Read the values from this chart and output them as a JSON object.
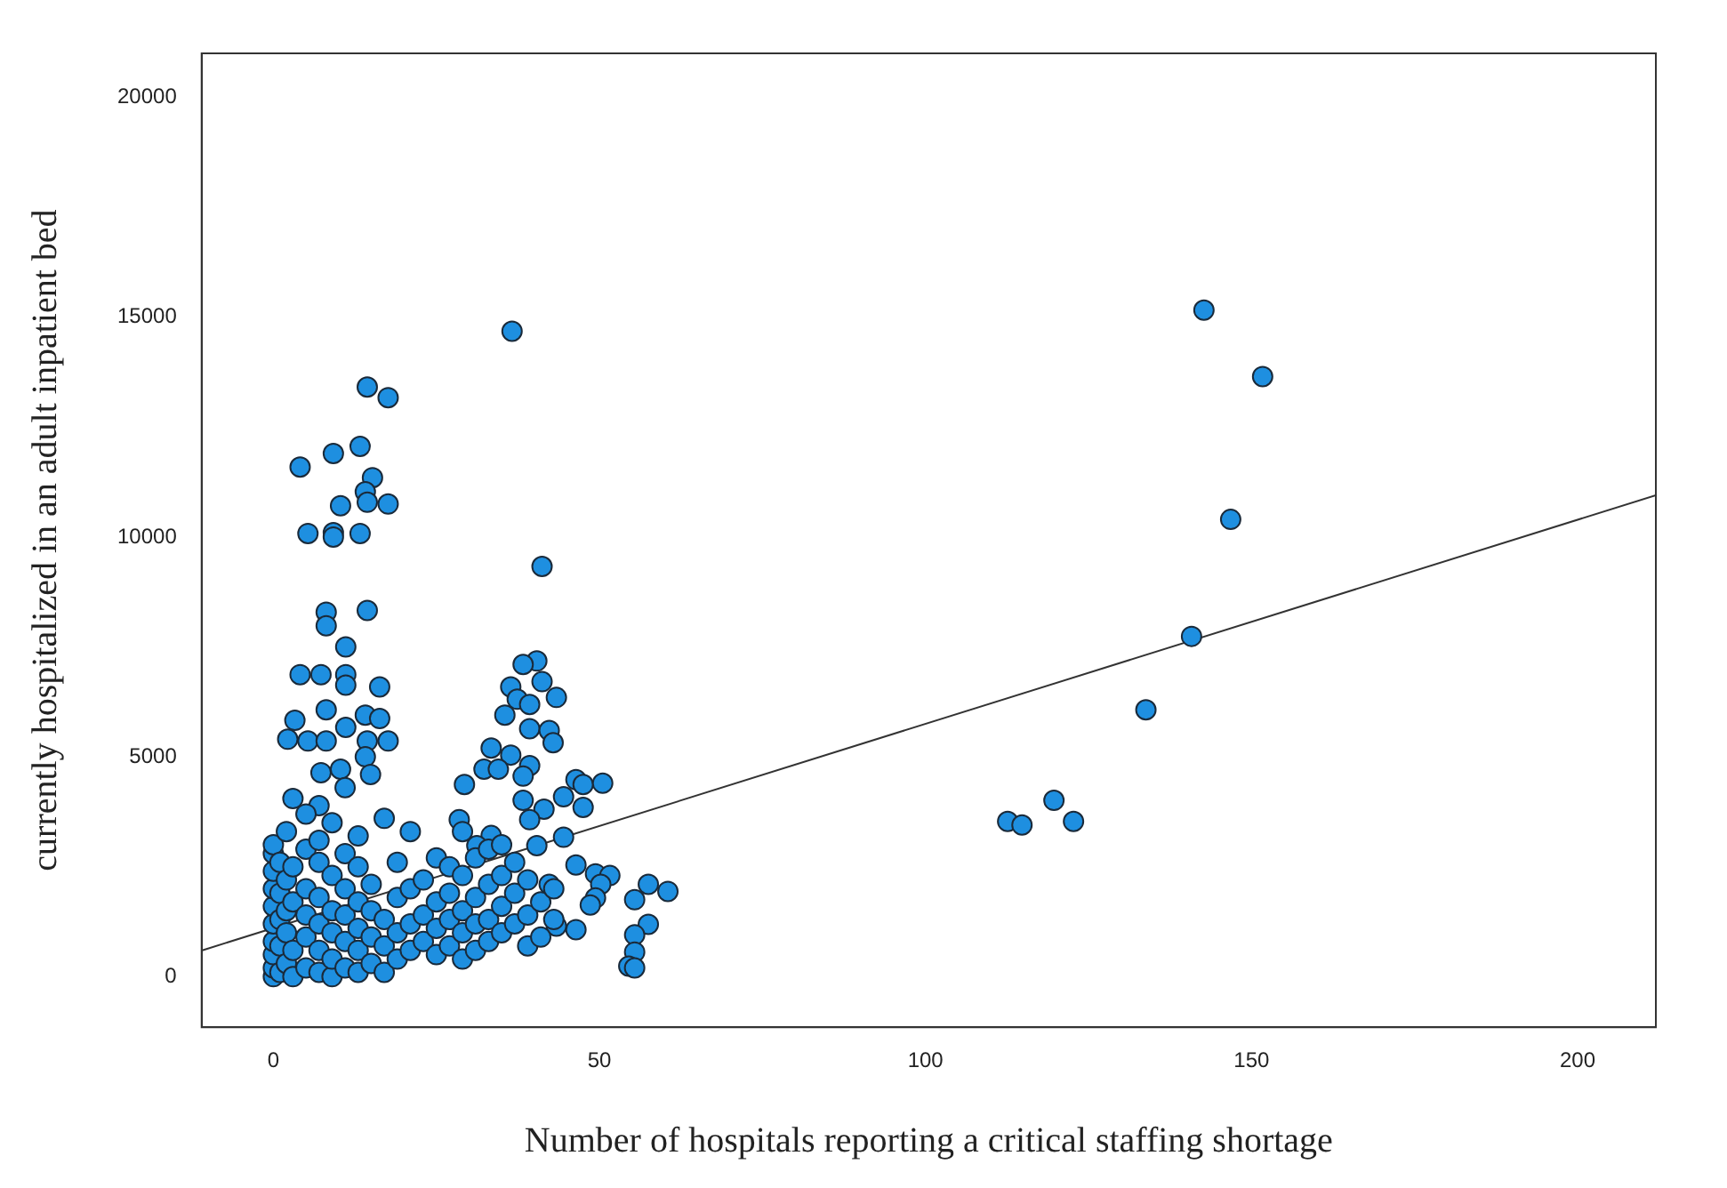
{
  "chart_data": {
    "type": "scatter",
    "xlabel": "Number of hospitals reporting a critical staffing shortage",
    "ylabel": "currently hospitalized in an adult inpatient bed",
    "xlim": [
      -11,
      212
    ],
    "ylim": [
      -1150,
      21000
    ],
    "xticks": [
      0,
      50,
      100,
      150,
      200
    ],
    "yticks": [
      0,
      5000,
      10000,
      15000,
      20000
    ],
    "grid": false,
    "legend": false,
    "marker": "circle",
    "series": [
      {
        "type": "scatter",
        "color": "#1e8fe0",
        "x": [
          112.6,
          114.8,
          119.7,
          122.7,
          133.8,
          140.8,
          142.7,
          146.8,
          151.7,
          36.6,
          14.4,
          17.6,
          4.1,
          9.2,
          13.3,
          15.2,
          14.1,
          14.4,
          17.6,
          10.3,
          5.3,
          9.2,
          9.2,
          13.3,
          41.2,
          14.4,
          8.1,
          8.1,
          11.1,
          4.1,
          7.3,
          11.1,
          11.1,
          16.3,
          3.3,
          8.1,
          11.1,
          14.1,
          16.3,
          2.2,
          5.3,
          8.1,
          14.4,
          17.6,
          14.1,
          7.3,
          10.3,
          14.9,
          3,
          7,
          40.4,
          38.3,
          41.2,
          36.4,
          37.4,
          39.3,
          43.4,
          35.5,
          39.3,
          42.3,
          42.9,
          33.4,
          36.4,
          32.3,
          34.5,
          39.3,
          29.3,
          38.3,
          46.4,
          47.5,
          50.5,
          38.3,
          44.5,
          47.5,
          41.5,
          28.5,
          39.3,
          33.4,
          44.5,
          31.2,
          40.4,
          46.4,
          49.4,
          51.6,
          50.2,
          57.5,
          60.5,
          55.4,
          49.4,
          48.6,
          57.5,
          46.4,
          55.4,
          55.4,
          54.5,
          55.4,
          43.4,
          42.3,
          0,
          0,
          0,
          0,
          0,
          0,
          0,
          0,
          0,
          0,
          1,
          1,
          1,
          1,
          1,
          2,
          2,
          2,
          2,
          2,
          3,
          3,
          3,
          3,
          5,
          5,
          5,
          5,
          5,
          5,
          7,
          7,
          7,
          7,
          7,
          7,
          9,
          9,
          9,
          9,
          9,
          9,
          11,
          11,
          11,
          11,
          11,
          11,
          13,
          13,
          13,
          13,
          13,
          13,
          15,
          15,
          15,
          15,
          17,
          17,
          17,
          17,
          19,
          19,
          19,
          19,
          21,
          21,
          21,
          21,
          23,
          23,
          23,
          25,
          25,
          25,
          25,
          27,
          27,
          27,
          27,
          29,
          29,
          29,
          29,
          29,
          31,
          31,
          31,
          31,
          33,
          33,
          33,
          33,
          35,
          35,
          35,
          35,
          37,
          37,
          37,
          39,
          39,
          39,
          41,
          41,
          43,
          43
        ],
        "values": [
          3530,
          3450,
          4010,
          3530,
          6070,
          7740,
          15160,
          10400,
          13650,
          14680,
          13410,
          13170,
          11590,
          11900,
          12060,
          11350,
          11030,
          10790,
          10750,
          10710,
          10080,
          10100,
          10000,
          10080,
          9330,
          8330,
          8290,
          7980,
          7500,
          6870,
          6870,
          6870,
          6630,
          6590,
          5830,
          6070,
          5670,
          5950,
          5870,
          5400,
          5360,
          5360,
          5360,
          5360,
          5000,
          4640,
          4720,
          4600,
          4050,
          3890,
          7180,
          7100,
          6710,
          6590,
          6310,
          6190,
          6350,
          5950,
          5640,
          5600,
          5320,
          5200,
          5040,
          4720,
          4720,
          4800,
          4370,
          4560,
          4480,
          4370,
          4400,
          4010,
          4090,
          3850,
          3810,
          3570,
          3570,
          3210,
          3170,
          2980,
          2980,
          2540,
          2340,
          2300,
          2100,
          2100,
          1940,
          1750,
          1790,
          1630,
          1190,
          1070,
          950,
          560,
          240,
          200,
          1150,
          2100,
          0,
          200,
          500,
          800,
          1200,
          1600,
          2000,
          2400,
          2800,
          3000,
          100,
          700,
          1300,
          1900,
          2600,
          300,
          1000,
          1500,
          2200,
          3300,
          0,
          600,
          1700,
          2500,
          200,
          900,
          1400,
          2000,
          2900,
          3700,
          100,
          600,
          1200,
          1800,
          2600,
          3100,
          0,
          400,
          1000,
          1500,
          2300,
          3500,
          200,
          800,
          1400,
          2000,
          2800,
          4300,
          100,
          600,
          1100,
          1700,
          2500,
          3200,
          300,
          900,
          1500,
          2100,
          100,
          700,
          1300,
          3600,
          400,
          1000,
          1800,
          2600,
          600,
          1200,
          2000,
          3300,
          800,
          1400,
          2200,
          500,
          1100,
          1700,
          2700,
          700,
          1300,
          1900,
          2500,
          400,
          1000,
          1500,
          2300,
          3300,
          600,
          1200,
          1800,
          2700,
          800,
          1300,
          2100,
          2900,
          1000,
          1600,
          2300,
          3000,
          1200,
          1900,
          2600,
          700,
          1400,
          2200,
          900,
          1700,
          1300,
          2000
        ]
      },
      {
        "type": "line",
        "color": "#333333",
        "marker": "none",
        "x": [
          -10.9,
          212
        ],
        "values": [
          600,
          10950
        ]
      }
    ]
  }
}
